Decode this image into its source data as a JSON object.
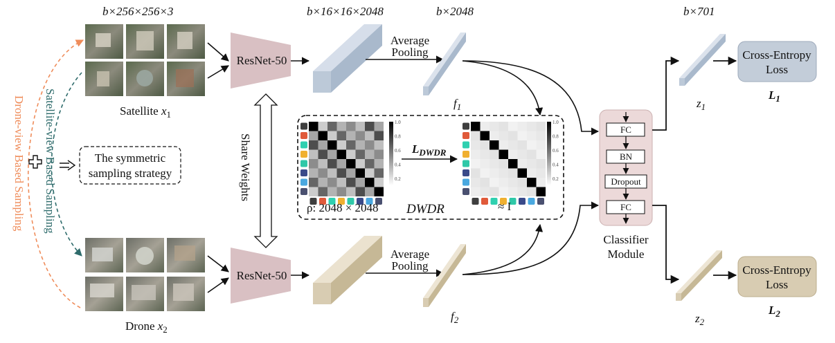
{
  "colors": {
    "satellite_box": "#bcc9d8",
    "drone_box": "#d8ccb2",
    "resnet": "#d9c0c3",
    "classifier": "#ecd9d9",
    "ce_top": "#c3cdd9",
    "ce_bottom": "#d8ccb2",
    "orange_arrow": "#ef8c5a",
    "teal_arrow": "#2e6b6b",
    "swatches": [
      "#3f3f3f",
      "#e05a3a",
      "#2fd0b0",
      "#f0b030",
      "#2fc8a8",
      "#3a4a8a",
      "#4aa8e0",
      "#4a5070"
    ]
  },
  "labels": {
    "sat_dims": "b×256×256×3",
    "feat_dims": "b×16×16×2048",
    "pool_dims": "b×2048",
    "out_dims": "b×701",
    "satellite_caption": "Satellite ",
    "satellite_var": "x",
    "satellite_sub": "1",
    "drone_caption": "Drone ",
    "drone_var": "x",
    "drone_sub": "2",
    "resnet_top": "ResNet-50",
    "resnet_bottom": "ResNet-50",
    "share_weights": "Share Weights",
    "avg_pool_top_1": "Average",
    "avg_pool_top_2": "Pooling",
    "avg_pool_bottom_1": "Average",
    "avg_pool_bottom_2": "Pooling",
    "f1": "f",
    "f1_sub": "1",
    "f2": "f",
    "f2_sub": "2",
    "z1": "z",
    "z1_sub": "1",
    "z2": "z",
    "z2_sub": "2",
    "symmetric_1": "The symmetric",
    "symmetric_2": "sampling strategy",
    "drone_sampling": "Drone-view Based Sampling",
    "satellite_sampling": "Satellite-view Based Sampling",
    "rho_label": "ρ: 2048 × 2048",
    "dwdr": "DWDR",
    "approx_i": "≈ I",
    "l_dwdr": "L",
    "l_dwdr_sub": "DWDR",
    "fc1": "FC",
    "bn": "BN",
    "dropout": "Dropout",
    "fc2": "FC",
    "classifier_1": "Classifier",
    "classifier_2": "Module",
    "ce_top_1": "Cross-Entropy",
    "ce_top_2": "Loss",
    "ce_bottom_1": "Cross-Entropy",
    "ce_bottom_2": "Loss",
    "loss1": "L",
    "loss1_sub": "1",
    "loss2": "L",
    "loss2_sub": "2",
    "colorbar_ticks": [
      "1.0",
      "0.8",
      "0.6",
      "0.4",
      "0.2"
    ]
  }
}
